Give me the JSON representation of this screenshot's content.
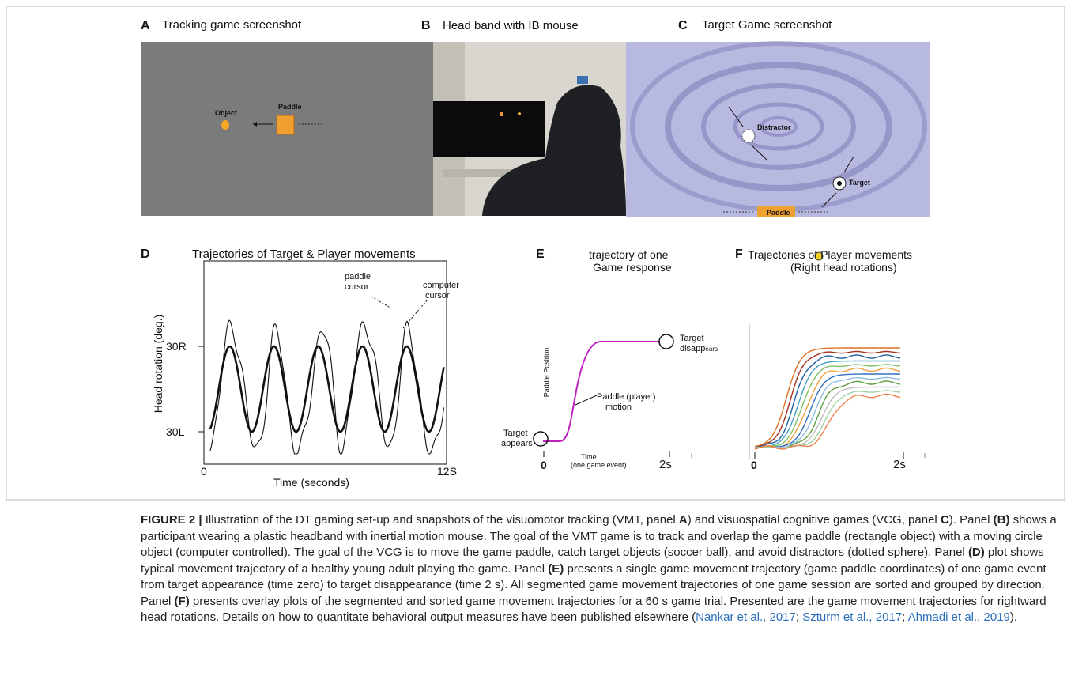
{
  "panels": {
    "a": {
      "label": "A",
      "title": "Tracking  game screenshot",
      "object": "Object",
      "paddle": "Paddle"
    },
    "b": {
      "label": "B",
      "title": "Head band with IB mouse"
    },
    "c": {
      "label": "C",
      "title": "Target Game screenshot",
      "distractor": "Distractor",
      "target": "Target",
      "paddle": "Paddle"
    },
    "d": {
      "label": "D",
      "title": "Trajectories of Target & Player movements",
      "y_axis": "Head rotation (deg.)",
      "y_top": "30R",
      "y_bottom": "30L",
      "x_start": "0",
      "x_end": "12S",
      "x_axis": "Time (seconds)",
      "paddle_note": [
        "paddle",
        "cursor"
      ],
      "computer_note": [
        "computer",
        "cursor"
      ]
    },
    "e": {
      "label": "E",
      "title": [
        "trajectory of one",
        "Game response"
      ],
      "y_axis": "Paddle Position",
      "start_note": [
        "Target",
        "appears"
      ],
      "end_note": [
        "Target",
        "disapp",
        "ears"
      ],
      "motion_note": [
        "Paddle (player)",
        "motion"
      ],
      "x_start": "0",
      "x_end": "2s",
      "x_axis": [
        "Time",
        "(one game event)"
      ]
    },
    "f": {
      "label": "F",
      "title": [
        "Trajectories of Player movements",
        "(Right head rotations)"
      ],
      "x_start": "0",
      "x_end": "2s"
    }
  },
  "caption": [
    {
      "text": "FIGURE 2 |",
      "style": "bold"
    },
    {
      "text": " Illustration of the DT gaming set-up and snapshots of the visuomotor tracking (VMT, panel ",
      "style": "plain"
    },
    {
      "text": "A",
      "style": "bold"
    },
    {
      "text": ") and visuospatial cognitive games (VCG, panel ",
      "style": "plain"
    },
    {
      "text": "C",
      "style": "bold"
    },
    {
      "text": "). Panel ",
      "style": "plain"
    },
    {
      "text": "(B)",
      "style": "bold"
    },
    {
      "text": " shows a participant wearing a plastic headband with inertial motion mouse. The goal of the VMT game is to track and overlap the game paddle (rectangle object) with a moving circle object (computer controlled). The goal of the VCG is to move the game paddle, catch target objects (soccer ball), and avoid distractors (dotted sphere). Panel ",
      "style": "plain"
    },
    {
      "text": "(D)",
      "style": "bold"
    },
    {
      "text": " plot shows typical movement trajectory of a healthy young adult playing the game. Panel ",
      "style": "plain"
    },
    {
      "text": "(E)",
      "style": "bold"
    },
    {
      "text": " presents a single game movement trajectory (game paddle coordinates) of one game event from target appearance (time zero) to target disappearance (time 2 s). All segmented game movement trajectories of one game session are sorted and grouped by direction. Panel ",
      "style": "plain"
    },
    {
      "text": "(F)",
      "style": "bold"
    },
    {
      "text": " presents overlay plots of the segmented and sorted game movement trajectories for a 60 s game trial. Presented are the game movement trajectories for rightward head rotations. Details on how to quantitate behavioral output measures have been published elsewhere (",
      "style": "plain"
    },
    {
      "text": "Nankar et al., 2017",
      "style": "link"
    },
    {
      "text": "; ",
      "style": "plain"
    },
    {
      "text": "Szturm et al., 2017",
      "style": "link"
    },
    {
      "text": "; ",
      "style": "plain"
    },
    {
      "text": "Ahmadi et al., 2019",
      "style": "link"
    },
    {
      "text": ").",
      "style": "plain"
    }
  ]
}
